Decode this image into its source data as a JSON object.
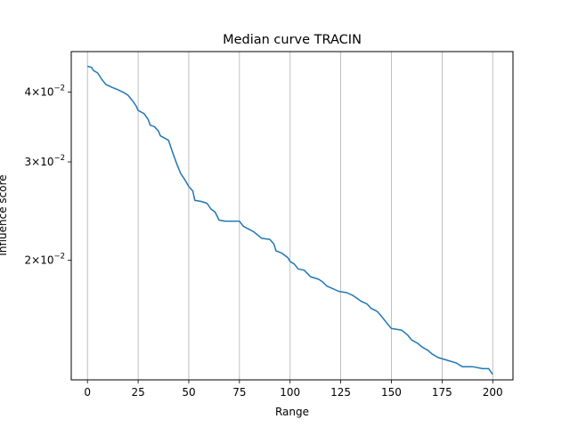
{
  "chart_data": {
    "type": "line",
    "title": "Median curve TRACIN",
    "xlabel": "Range",
    "ylabel": "Influence score",
    "yscale": "log",
    "xlim": [
      -8,
      210
    ],
    "ylim": [
      0.01222,
      0.04727
    ],
    "grid": "vertical",
    "x_ticks": [
      0,
      25,
      50,
      75,
      100,
      125,
      150,
      175,
      200
    ],
    "y_ticks": [
      {
        "value": 0.04,
        "base": "4",
        "sci": "10",
        "exp": "−2"
      },
      {
        "value": 0.03,
        "base": "3",
        "sci": "10",
        "exp": "−2"
      },
      {
        "value": 0.02,
        "base": "2",
        "sci": "10",
        "exp": "−2"
      }
    ],
    "series": [
      {
        "color": "#1f77b4",
        "points": [
          [
            0,
            0.0445
          ],
          [
            2,
            0.0443
          ],
          [
            3,
            0.0437
          ],
          [
            5,
            0.0433
          ],
          [
            7,
            0.0422
          ],
          [
            9,
            0.0413
          ],
          [
            12,
            0.0408
          ],
          [
            15,
            0.0404
          ],
          [
            18,
            0.0399
          ],
          [
            20,
            0.0395
          ],
          [
            22,
            0.0387
          ],
          [
            24,
            0.0378
          ],
          [
            25,
            0.0371
          ],
          [
            28,
            0.0366
          ],
          [
            30,
            0.0357
          ],
          [
            31,
            0.0349
          ],
          [
            33,
            0.0347
          ],
          [
            35,
            0.0341
          ],
          [
            36,
            0.0334
          ],
          [
            38,
            0.0331
          ],
          [
            40,
            0.0328
          ],
          [
            42,
            0.0312
          ],
          [
            44,
            0.0298
          ],
          [
            46,
            0.0286
          ],
          [
            48,
            0.0279
          ],
          [
            50,
            0.0271
          ],
          [
            52,
            0.0266
          ],
          [
            53,
            0.0256
          ],
          [
            56,
            0.0255
          ],
          [
            59,
            0.0253
          ],
          [
            61,
            0.0247
          ],
          [
            63,
            0.0244
          ],
          [
            65,
            0.0236
          ],
          [
            68,
            0.0235
          ],
          [
            75,
            0.0235
          ],
          [
            77,
            0.023
          ],
          [
            80,
            0.0227
          ],
          [
            82,
            0.0225
          ],
          [
            84,
            0.0222
          ],
          [
            86,
            0.0219
          ],
          [
            90,
            0.0218
          ],
          [
            92,
            0.0214
          ],
          [
            93,
            0.0208
          ],
          [
            96,
            0.0206
          ],
          [
            99,
            0.0202
          ],
          [
            100,
            0.0199
          ],
          [
            102,
            0.0197
          ],
          [
            104,
            0.0193
          ],
          [
            107,
            0.0192
          ],
          [
            110,
            0.0187
          ],
          [
            114,
            0.0185
          ],
          [
            116,
            0.0183
          ],
          [
            118,
            0.018
          ],
          [
            121,
            0.0178
          ],
          [
            124,
            0.0176
          ],
          [
            128,
            0.0175
          ],
          [
            131,
            0.0173
          ],
          [
            133,
            0.0171
          ],
          [
            135,
            0.0169
          ],
          [
            138,
            0.0167
          ],
          [
            140,
            0.0164
          ],
          [
            143,
            0.0162
          ],
          [
            145,
            0.0159
          ],
          [
            148,
            0.0154
          ],
          [
            150,
            0.0151
          ],
          [
            155,
            0.015
          ],
          [
            158,
            0.0147
          ],
          [
            160,
            0.0144
          ],
          [
            163,
            0.0142
          ],
          [
            165,
            0.014
          ],
          [
            168,
            0.0138
          ],
          [
            170,
            0.0136
          ],
          [
            173,
            0.0134
          ],
          [
            176,
            0.0133
          ],
          [
            179,
            0.0132
          ],
          [
            182,
            0.0131
          ],
          [
            185,
            0.0129
          ],
          [
            190,
            0.0129
          ],
          [
            195,
            0.0128
          ],
          [
            198,
            0.0128
          ],
          [
            200,
            0.0125
          ]
        ]
      }
    ]
  }
}
